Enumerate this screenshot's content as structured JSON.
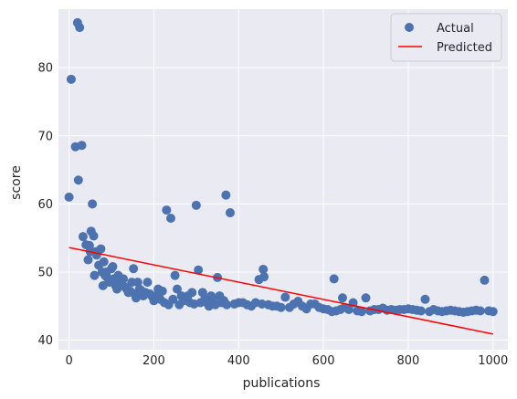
{
  "chart_data": {
    "type": "scatter",
    "xlabel": "publications",
    "ylabel": "score",
    "xlim": [
      -25,
      1035
    ],
    "ylim": [
      38.6,
      88.6
    ],
    "x_ticks": [
      0,
      200,
      400,
      600,
      800,
      1000
    ],
    "y_ticks": [
      40,
      50,
      60,
      70,
      80
    ],
    "grid": true,
    "legend_position": "upper-right",
    "colors": {
      "actual": "#4c72b0",
      "predicted": "#ff0000",
      "background": "#eaeaf2",
      "grid": "#ffffff"
    },
    "series": [
      {
        "name": "Actual",
        "kind": "scatter",
        "x": [
          0,
          5,
          15,
          20,
          22,
          25,
          30,
          33,
          40,
          45,
          48,
          50,
          52,
          55,
          58,
          60,
          63,
          65,
          70,
          75,
          78,
          80,
          82,
          85,
          88,
          90,
          95,
          100,
          103,
          106,
          110,
          113,
          116,
          120,
          124,
          128,
          132,
          136,
          140,
          144,
          148,
          152,
          155,
          158,
          162,
          166,
          170,
          175,
          180,
          185,
          190,
          195,
          200,
          205,
          210,
          215,
          220,
          225,
          230,
          235,
          240,
          245,
          250,
          255,
          260,
          265,
          270,
          280,
          285,
          290,
          295,
          300,
          305,
          310,
          315,
          320,
          325,
          330,
          335,
          340,
          345,
          350,
          355,
          360,
          365,
          370,
          372,
          380,
          390,
          400,
          410,
          420,
          430,
          440,
          448,
          455,
          458,
          460,
          470,
          480,
          490,
          500,
          510,
          520,
          530,
          540,
          550,
          560,
          570,
          580,
          590,
          600,
          610,
          620,
          625,
          630,
          640,
          645,
          650,
          660,
          670,
          680,
          690,
          700,
          710,
          720,
          730,
          740,
          750,
          760,
          770,
          780,
          790,
          800,
          810,
          820,
          830,
          840,
          850,
          860,
          870,
          880,
          890,
          900,
          910,
          920,
          930,
          940,
          950,
          960,
          970,
          980,
          990,
          1000
        ],
        "y": [
          61,
          78.3,
          68.4,
          86.6,
          63.5,
          85.9,
          68.6,
          55.2,
          54,
          51.8,
          53.9,
          53,
          56,
          60,
          55.3,
          49.5,
          53,
          52.5,
          51,
          53.4,
          50,
          48,
          51.5,
          49.5,
          50,
          49.2,
          48.5,
          50.5,
          50.8,
          49,
          48,
          47.5,
          49.5,
          48.8,
          48.2,
          49,
          47.8,
          47.5,
          47,
          47.2,
          48.5,
          50.5,
          46.8,
          46.2,
          48.5,
          47.5,
          47.3,
          46.5,
          47,
          48.5,
          46.8,
          46.5,
          45.8,
          46.5,
          47.5,
          46,
          47.2,
          45.5,
          59.1,
          45.2,
          57.9,
          46,
          49.5,
          47.5,
          45.2,
          46.5,
          45.8,
          46.5,
          45.5,
          47,
          45.3,
          59.8,
          50.3,
          45.5,
          47,
          46,
          45.5,
          45,
          46.5,
          45.8,
          45.2,
          49.2,
          46.5,
          45.5,
          45.8,
          61.3,
          45.2,
          58.7,
          45.3,
          45.5,
          45.5,
          45.2,
          45,
          45.5,
          48.9,
          45.3,
          50.4,
          49.3,
          45.2,
          45,
          45,
          44.8,
          46.3,
          44.8,
          45.3,
          45.7,
          45,
          44.6,
          45.3,
          45.3,
          44.8,
          44.6,
          44.5,
          44.2,
          49,
          44.3,
          44.5,
          46.2,
          44.8,
          44.5,
          45.5,
          44.3,
          44.2,
          46.2,
          44.3,
          44.5,
          44.5,
          44.7,
          44.4,
          44.5,
          44.4,
          44.5,
          44.5,
          44.6,
          44.5,
          44.4,
          44.3,
          46,
          44.2,
          44.5,
          44.3,
          44.2,
          44.3,
          44.4,
          44.3,
          44.2,
          44.1,
          44.2,
          44.3,
          44.4,
          44.3,
          48.8,
          44.3,
          44.2
        ]
      },
      {
        "name": "Predicted",
        "kind": "line",
        "x": [
          0,
          1000
        ],
        "y": [
          53.6,
          40.9
        ]
      }
    ]
  }
}
